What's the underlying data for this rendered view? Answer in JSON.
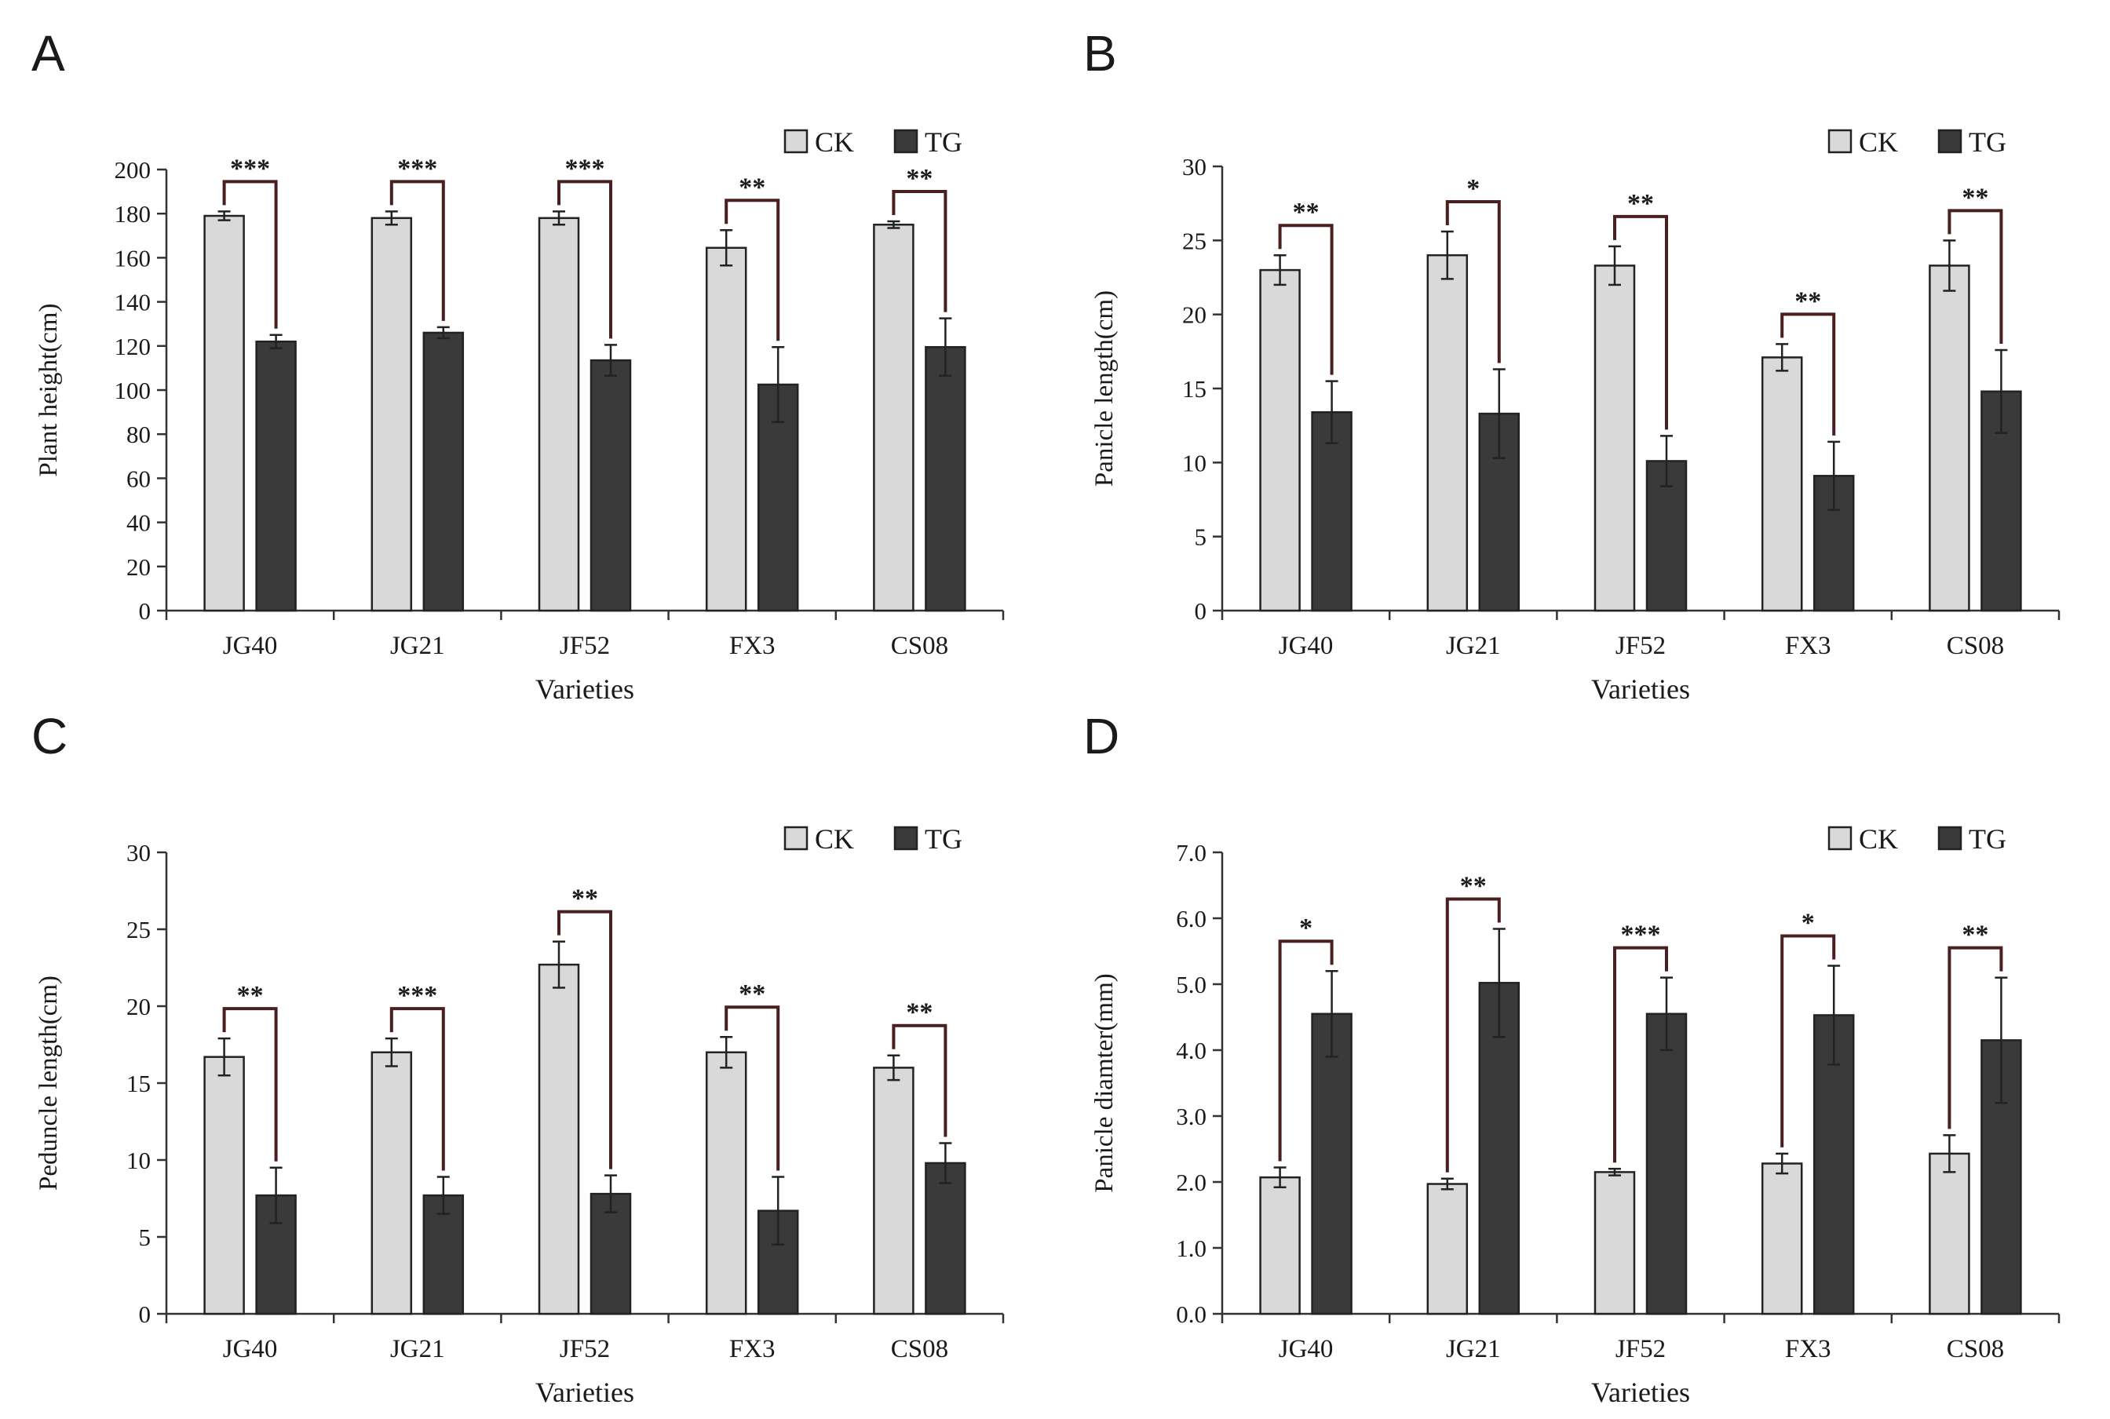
{
  "chart_data": [
    {
      "panel": "A",
      "type": "bar",
      "xlabel": "Varieties",
      "ylabel": "Plant height(cm)",
      "ylim": [
        0,
        200
      ],
      "yticks": [
        "0",
        "20",
        "40",
        "60",
        "80",
        "100",
        "120",
        "140",
        "160",
        "180",
        "200"
      ],
      "categories": [
        "JG40",
        "JG21",
        "JF52",
        "FX3",
        "CS08"
      ],
      "legend": [
        "CK",
        "TG"
      ],
      "series": [
        {
          "name": "CK",
          "color": "#d9d9d9",
          "values": [
            179,
            178,
            178,
            164.5,
            175
          ],
          "errors": [
            2,
            3,
            3,
            8,
            1.5
          ]
        },
        {
          "name": "TG",
          "color": "#3a3a3a",
          "values": [
            122,
            126,
            113.5,
            102.5,
            119.5
          ],
          "errors": [
            3,
            2.5,
            7,
            17,
            13
          ]
        }
      ],
      "significance": [
        "***",
        "***",
        "***",
        "**",
        "**"
      ]
    },
    {
      "panel": "B",
      "type": "bar",
      "xlabel": "Varieties",
      "ylabel": "Panicle length(cm)",
      "ylim": [
        0,
        30
      ],
      "yticks": [
        "0",
        "5",
        "10",
        "15",
        "20",
        "25",
        "30"
      ],
      "categories": [
        "JG40",
        "JG21",
        "JF52",
        "FX3",
        "CS08"
      ],
      "legend": [
        "CK",
        "TG"
      ],
      "series": [
        {
          "name": "CK",
          "color": "#d9d9d9",
          "values": [
            23,
            24,
            23.3,
            17.1,
            23.3
          ],
          "errors": [
            1,
            1.6,
            1.3,
            0.9,
            1.7
          ]
        },
        {
          "name": "TG",
          "color": "#3a3a3a",
          "values": [
            13.4,
            13.3,
            10.1,
            9.1,
            14.8
          ],
          "errors": [
            2.1,
            3,
            1.7,
            2.3,
            2.8
          ]
        }
      ],
      "significance": [
        "**",
        "*",
        "**",
        "**",
        "**"
      ]
    },
    {
      "panel": "C",
      "type": "bar",
      "xlabel": "Varieties",
      "ylabel": "Peduncle length(cm)",
      "ylim": [
        0,
        30
      ],
      "yticks": [
        "0",
        "5",
        "10",
        "15",
        "20",
        "25",
        "30"
      ],
      "categories": [
        "JG40",
        "JG21",
        "JF52",
        "FX3",
        "CS08"
      ],
      "legend": [
        "CK",
        "TG"
      ],
      "series": [
        {
          "name": "CK",
          "color": "#d9d9d9",
          "values": [
            16.7,
            17,
            22.7,
            17,
            16
          ],
          "errors": [
            1.2,
            0.9,
            1.5,
            1,
            0.8
          ]
        },
        {
          "name": "TG",
          "color": "#3a3a3a",
          "values": [
            7.7,
            7.7,
            7.8,
            6.7,
            9.8
          ],
          "errors": [
            1.8,
            1.2,
            1.2,
            2.2,
            1.3
          ]
        }
      ],
      "significance": [
        "**",
        "***",
        "**",
        "**",
        "**"
      ]
    },
    {
      "panel": "D",
      "type": "bar",
      "xlabel": "Varieties",
      "ylabel": "Panicle diamter(mm)",
      "ylim": [
        0,
        7
      ],
      "yticks": [
        "0.0",
        "1.0",
        "2.0",
        "3.0",
        "4.0",
        "5.0",
        "6.0",
        "7.0"
      ],
      "categories": [
        "JG40",
        "JG21",
        "JF52",
        "FX3",
        "CS08"
      ],
      "legend": [
        "CK",
        "TG"
      ],
      "series": [
        {
          "name": "CK",
          "color": "#d9d9d9",
          "values": [
            2.07,
            1.97,
            2.15,
            2.28,
            2.43
          ],
          "errors": [
            0.15,
            0.08,
            0.05,
            0.15,
            0.28
          ]
        },
        {
          "name": "TG",
          "color": "#3a3a3a",
          "values": [
            4.55,
            5.02,
            4.55,
            4.53,
            4.15
          ],
          "errors": [
            0.65,
            0.82,
            0.55,
            0.75,
            0.95
          ]
        }
      ],
      "significance": [
        "*",
        "**",
        "***",
        "*",
        "**"
      ]
    }
  ]
}
